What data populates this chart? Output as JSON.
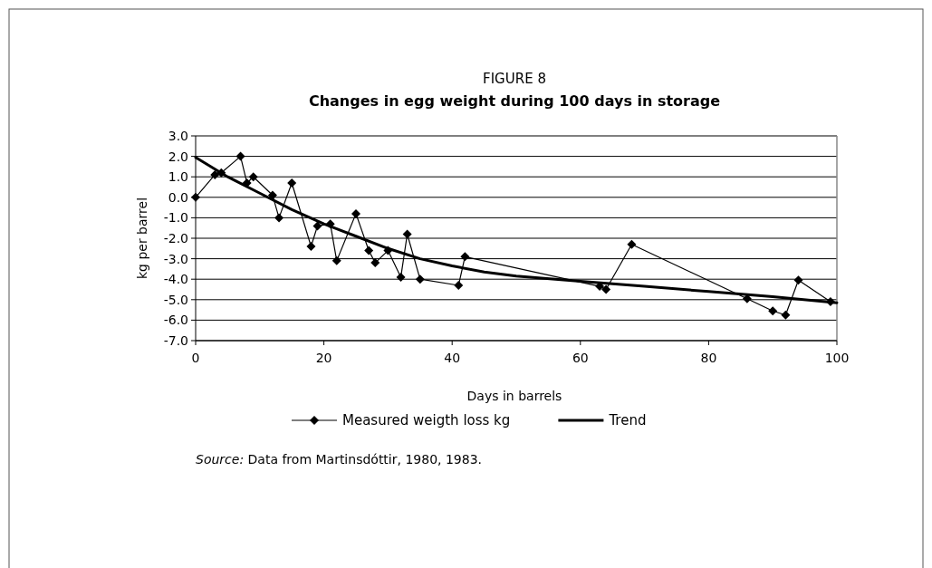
{
  "chart_data": {
    "type": "line",
    "title": "FIGURE 8",
    "subtitle": "Changes in egg weight during 100 days in storage",
    "xlabel": "Days in barrels",
    "ylabel": "kg per barrel",
    "xlim": [
      0,
      100
    ],
    "xticks": [
      0,
      20,
      40,
      60,
      80,
      100
    ],
    "ylim": [
      -7,
      3
    ],
    "yticks": [
      {
        "value": -7,
        "label": "-7.0"
      },
      {
        "value": -6,
        "label": "-6.0"
      },
      {
        "value": -5,
        "label": "-5.0"
      },
      {
        "value": -4,
        "label": "-4.0"
      },
      {
        "value": -3,
        "label": "-3.0"
      },
      {
        "value": -2,
        "label": "-2.0"
      },
      {
        "value": -1,
        "label": "-1.0"
      },
      {
        "value": 0,
        "label": "0.0"
      },
      {
        "value": 1,
        "label": "1.0"
      },
      {
        "value": 2,
        "label": "2.0"
      },
      {
        "value": 3,
        "label": "3.0"
      }
    ],
    "grid": "y",
    "legend": "bottom",
    "series": [
      {
        "name": "Measured weigth loss kg",
        "color": "#000000",
        "marker": "diamond",
        "x": [
          0,
          3,
          4,
          7,
          8,
          9,
          12,
          13,
          15,
          18,
          19,
          21,
          22,
          25,
          27,
          28,
          30,
          32,
          33,
          35,
          41,
          42,
          63,
          64,
          68,
          86,
          90,
          92,
          94,
          99
        ],
        "values": [
          0,
          1.1,
          1.2,
          2.0,
          0.7,
          1.0,
          0.1,
          -1.0,
          0.7,
          -2.4,
          -1.4,
          -1.3,
          -3.1,
          -0.8,
          -2.6,
          -3.2,
          -2.6,
          -3.9,
          -1.8,
          -4.0,
          -4.3,
          -2.9,
          -4.35,
          -4.5,
          -2.3,
          -4.95,
          -5.55,
          -5.75,
          -4.05,
          -5.1
        ]
      },
      {
        "name": "Trend",
        "color": "#000000",
        "marker": "none",
        "x": [
          0,
          5,
          10,
          15,
          20,
          25,
          30,
          35,
          40,
          45,
          50,
          60,
          70,
          80,
          90,
          100
        ],
        "values": [
          1.95,
          1.0,
          0.2,
          -0.6,
          -1.3,
          -1.9,
          -2.5,
          -3.0,
          -3.35,
          -3.65,
          -3.85,
          -4.1,
          -4.35,
          -4.6,
          -4.85,
          -5.15
        ]
      }
    ],
    "annotations": [
      "Source: Data from Martinsdóttir, 1980, 1983."
    ]
  }
}
